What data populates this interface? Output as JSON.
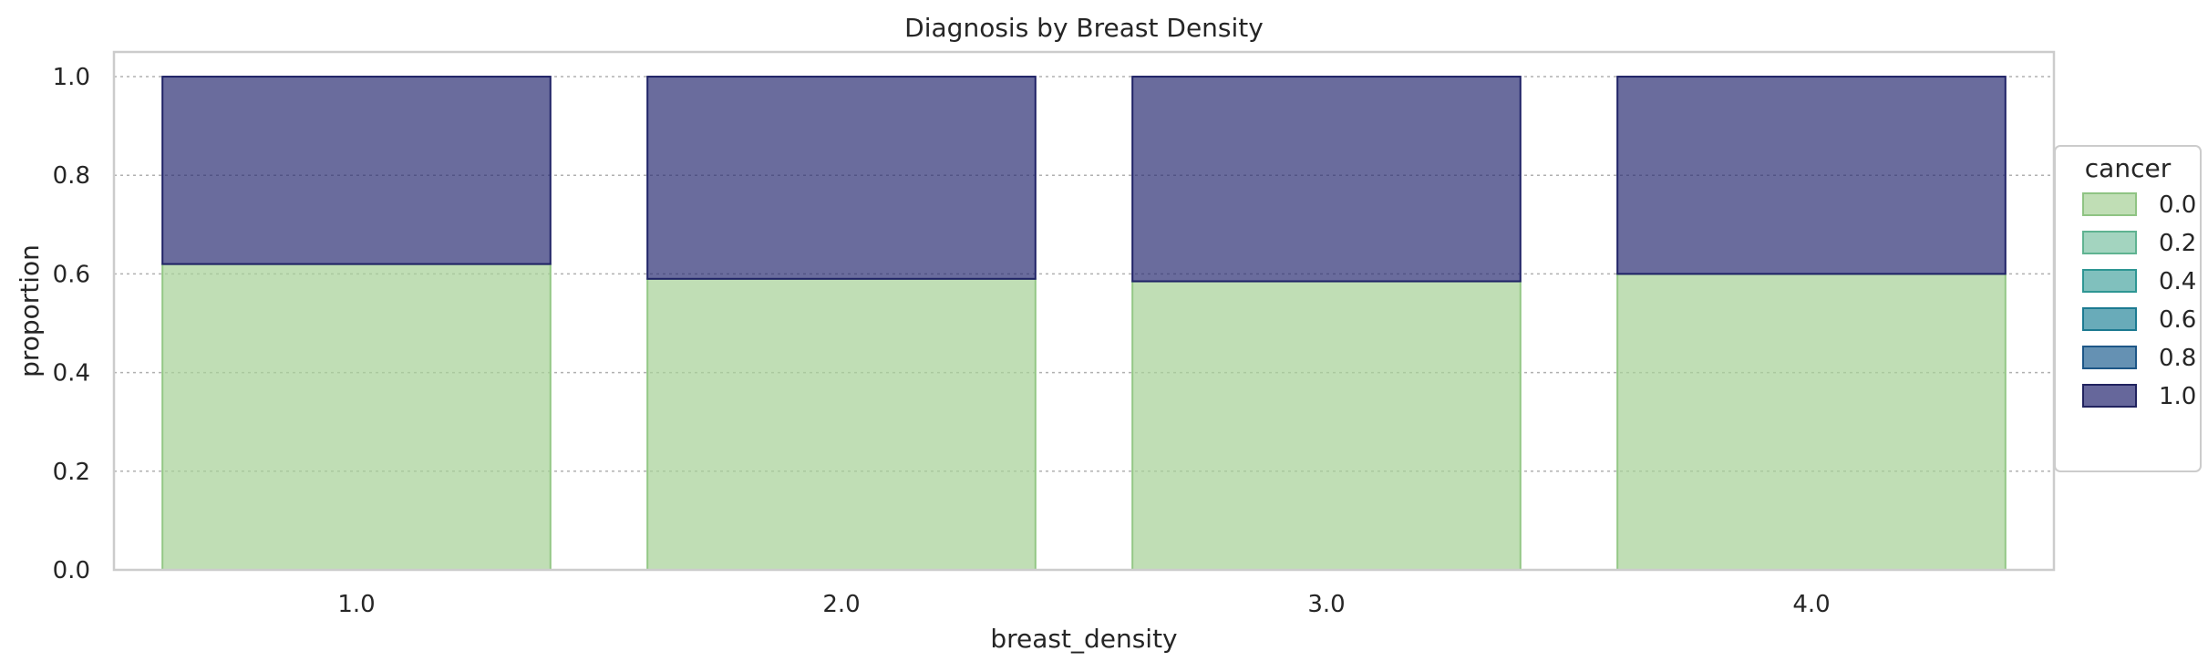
{
  "chart_data": {
    "type": "bar",
    "stacked": true,
    "normalized": true,
    "title": "Diagnosis by Breast Density",
    "xlabel": "breast_density",
    "ylabel": "proportion",
    "categories": [
      "1.0",
      "2.0",
      "3.0",
      "4.0"
    ],
    "ylim": [
      0,
      1.05
    ],
    "yticks": [
      "0.0",
      "0.2",
      "0.4",
      "0.6",
      "0.8",
      "1.0"
    ],
    "grid": "y-dotted",
    "series": [
      {
        "name": "0.0",
        "color": "#a8d199",
        "values": [
          0.62,
          0.59,
          0.585,
          0.6
        ]
      },
      {
        "name": "1.0",
        "color": "#2b2d74",
        "values": [
          0.38,
          0.41,
          0.415,
          0.4
        ]
      }
    ],
    "legend": {
      "title": "cancer",
      "placement": "right",
      "entries": [
        {
          "label": "0.0",
          "fill": "#a8d199",
          "edge": "#8fc483"
        },
        {
          "label": "0.2",
          "fill": "#7fc3a6",
          "edge": "#5fb391"
        },
        {
          "label": "0.4",
          "fill": "#4fa8a3",
          "edge": "#2e9693"
        },
        {
          "label": "0.6",
          "fill": "#2f8b9e",
          "edge": "#1c7a91"
        },
        {
          "label": "0.8",
          "fill": "#2a6695",
          "edge": "#1d5687"
        },
        {
          "label": "1.0",
          "fill": "#2b2d74",
          "edge": "#21235f"
        }
      ]
    }
  }
}
